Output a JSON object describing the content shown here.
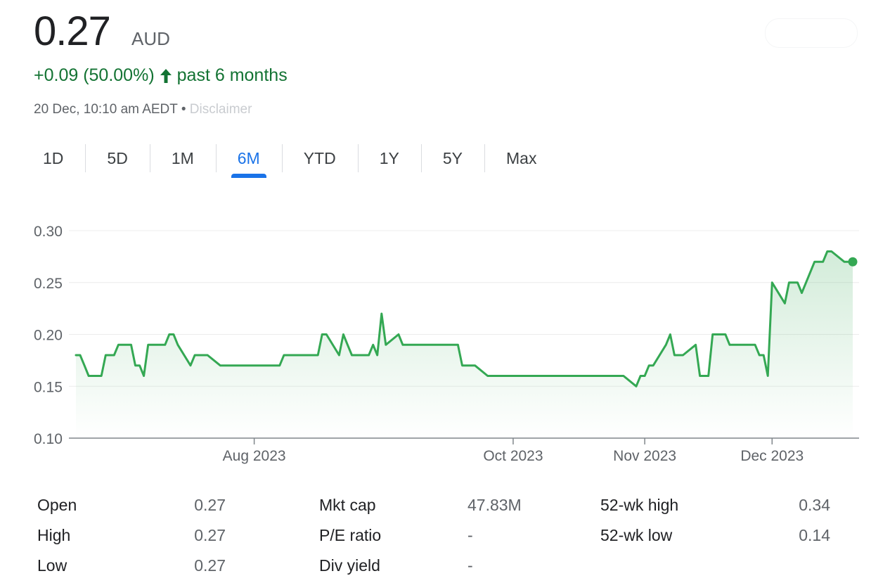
{
  "header": {
    "price": "0.27",
    "currency": "AUD",
    "change": "+0.09 (50.00%)",
    "period": "past 6 months",
    "timestamp": "20 Dec, 10:10 am AEDT •",
    "timestamp_blur": "Disclaimer"
  },
  "colors": {
    "up": "#137333",
    "line": "#34a853",
    "accent": "#1a73e8"
  },
  "tabs": [
    {
      "label": "1D",
      "active": false
    },
    {
      "label": "5D",
      "active": false
    },
    {
      "label": "1M",
      "active": false
    },
    {
      "label": "6M",
      "active": true
    },
    {
      "label": "YTD",
      "active": false
    },
    {
      "label": "1Y",
      "active": false
    },
    {
      "label": "5Y",
      "active": false
    },
    {
      "label": "Max",
      "active": false
    }
  ],
  "chart_data": {
    "type": "area",
    "x_start": "2023-06-20",
    "x_end": "2023-12-20",
    "ylim": [
      0.1,
      0.3
    ],
    "yticks": [
      "0.30",
      "0.25",
      "0.20",
      "0.15",
      "0.10"
    ],
    "xticks": [
      {
        "date": "2023-08-01",
        "label": "Aug 2023"
      },
      {
        "date": "2023-10-01",
        "label": "Oct 2023"
      },
      {
        "date": "2023-11-01",
        "label": "Nov 2023"
      },
      {
        "date": "2023-12-01",
        "label": "Dec 2023"
      }
    ],
    "grid": true,
    "points": [
      [
        "2023-06-20",
        0.18
      ],
      [
        "2023-06-21",
        0.18
      ],
      [
        "2023-06-22",
        0.17
      ],
      [
        "2023-06-23",
        0.16
      ],
      [
        "2023-06-26",
        0.16
      ],
      [
        "2023-06-27",
        0.18
      ],
      [
        "2023-06-28",
        0.18
      ],
      [
        "2023-06-29",
        0.18
      ],
      [
        "2023-06-30",
        0.19
      ],
      [
        "2023-07-03",
        0.19
      ],
      [
        "2023-07-04",
        0.17
      ],
      [
        "2023-07-05",
        0.17
      ],
      [
        "2023-07-06",
        0.16
      ],
      [
        "2023-07-07",
        0.19
      ],
      [
        "2023-07-10",
        0.19
      ],
      [
        "2023-07-11",
        0.19
      ],
      [
        "2023-07-12",
        0.2
      ],
      [
        "2023-07-13",
        0.2
      ],
      [
        "2023-07-14",
        0.19
      ],
      [
        "2023-07-17",
        0.17
      ],
      [
        "2023-07-18",
        0.18
      ],
      [
        "2023-07-19",
        0.18
      ],
      [
        "2023-07-20",
        0.18
      ],
      [
        "2023-07-21",
        0.18
      ],
      [
        "2023-07-24",
        0.17
      ],
      [
        "2023-07-25",
        0.17
      ],
      [
        "2023-07-26",
        0.17
      ],
      [
        "2023-07-27",
        0.17
      ],
      [
        "2023-07-28",
        0.17
      ],
      [
        "2023-07-31",
        0.17
      ],
      [
        "2023-08-01",
        0.17
      ],
      [
        "2023-08-02",
        0.17
      ],
      [
        "2023-08-03",
        0.17
      ],
      [
        "2023-08-04",
        0.17
      ],
      [
        "2023-08-07",
        0.17
      ],
      [
        "2023-08-08",
        0.18
      ],
      [
        "2023-08-09",
        0.18
      ],
      [
        "2023-08-10",
        0.18
      ],
      [
        "2023-08-11",
        0.18
      ],
      [
        "2023-08-14",
        0.18
      ],
      [
        "2023-08-15",
        0.18
      ],
      [
        "2023-08-16",
        0.18
      ],
      [
        "2023-08-17",
        0.2
      ],
      [
        "2023-08-18",
        0.2
      ],
      [
        "2023-08-21",
        0.18
      ],
      [
        "2023-08-22",
        0.2
      ],
      [
        "2023-08-23",
        0.19
      ],
      [
        "2023-08-24",
        0.18
      ],
      [
        "2023-08-25",
        0.18
      ],
      [
        "2023-08-28",
        0.18
      ],
      [
        "2023-08-29",
        0.19
      ],
      [
        "2023-08-30",
        0.18
      ],
      [
        "2023-08-31",
        0.22
      ],
      [
        "2023-09-01",
        0.19
      ],
      [
        "2023-09-04",
        0.2
      ],
      [
        "2023-09-05",
        0.19
      ],
      [
        "2023-09-06",
        0.19
      ],
      [
        "2023-09-07",
        0.19
      ],
      [
        "2023-09-08",
        0.19
      ],
      [
        "2023-09-11",
        0.19
      ],
      [
        "2023-09-12",
        0.19
      ],
      [
        "2023-09-13",
        0.19
      ],
      [
        "2023-09-14",
        0.19
      ],
      [
        "2023-09-15",
        0.19
      ],
      [
        "2023-09-18",
        0.19
      ],
      [
        "2023-09-19",
        0.17
      ],
      [
        "2023-09-20",
        0.17
      ],
      [
        "2023-09-21",
        0.17
      ],
      [
        "2023-09-22",
        0.17
      ],
      [
        "2023-09-25",
        0.16
      ],
      [
        "2023-09-26",
        0.16
      ],
      [
        "2023-09-27",
        0.16
      ],
      [
        "2023-09-28",
        0.16
      ],
      [
        "2023-09-29",
        0.16
      ],
      [
        "2023-10-02",
        0.16
      ],
      [
        "2023-10-03",
        0.16
      ],
      [
        "2023-10-04",
        0.16
      ],
      [
        "2023-10-05",
        0.16
      ],
      [
        "2023-10-06",
        0.16
      ],
      [
        "2023-10-09",
        0.16
      ],
      [
        "2023-10-10",
        0.16
      ],
      [
        "2023-10-11",
        0.16
      ],
      [
        "2023-10-12",
        0.16
      ],
      [
        "2023-10-13",
        0.16
      ],
      [
        "2023-10-16",
        0.16
      ],
      [
        "2023-10-17",
        0.16
      ],
      [
        "2023-10-18",
        0.16
      ],
      [
        "2023-10-19",
        0.16
      ],
      [
        "2023-10-20",
        0.16
      ],
      [
        "2023-10-23",
        0.16
      ],
      [
        "2023-10-24",
        0.16
      ],
      [
        "2023-10-25",
        0.16
      ],
      [
        "2023-10-26",
        0.16
      ],
      [
        "2023-10-27",
        0.16
      ],
      [
        "2023-10-30",
        0.15
      ],
      [
        "2023-10-31",
        0.16
      ],
      [
        "2023-11-01",
        0.16
      ],
      [
        "2023-11-02",
        0.17
      ],
      [
        "2023-11-03",
        0.17
      ],
      [
        "2023-11-06",
        0.19
      ],
      [
        "2023-11-07",
        0.2
      ],
      [
        "2023-11-08",
        0.18
      ],
      [
        "2023-11-09",
        0.18
      ],
      [
        "2023-11-10",
        0.18
      ],
      [
        "2023-11-13",
        0.19
      ],
      [
        "2023-11-14",
        0.16
      ],
      [
        "2023-11-15",
        0.16
      ],
      [
        "2023-11-16",
        0.16
      ],
      [
        "2023-11-17",
        0.2
      ],
      [
        "2023-11-20",
        0.2
      ],
      [
        "2023-11-21",
        0.19
      ],
      [
        "2023-11-22",
        0.19
      ],
      [
        "2023-11-23",
        0.19
      ],
      [
        "2023-11-24",
        0.19
      ],
      [
        "2023-11-27",
        0.19
      ],
      [
        "2023-11-28",
        0.18
      ],
      [
        "2023-11-29",
        0.18
      ],
      [
        "2023-11-30",
        0.16
      ],
      [
        "2023-12-01",
        0.25
      ],
      [
        "2023-12-04",
        0.23
      ],
      [
        "2023-12-05",
        0.25
      ],
      [
        "2023-12-06",
        0.25
      ],
      [
        "2023-12-07",
        0.25
      ],
      [
        "2023-12-08",
        0.24
      ],
      [
        "2023-12-11",
        0.27
      ],
      [
        "2023-12-12",
        0.27
      ],
      [
        "2023-12-13",
        0.27
      ],
      [
        "2023-12-14",
        0.28
      ],
      [
        "2023-12-15",
        0.28
      ],
      [
        "2023-12-18",
        0.27
      ],
      [
        "2023-12-19",
        0.27
      ],
      [
        "2023-12-20",
        0.27
      ]
    ]
  },
  "stats": [
    {
      "k1": "Open",
      "v1": "0.27",
      "k2": "Mkt cap",
      "v2": "47.83M",
      "k3": "52-wk high",
      "v3": "0.34"
    },
    {
      "k1": "High",
      "v1": "0.27",
      "k2": "P/E ratio",
      "v2": "-",
      "k3": "52-wk low",
      "v3": "0.14"
    },
    {
      "k1": "Low",
      "v1": "0.27",
      "k2": "Div yield",
      "v2": "-",
      "k3": "",
      "v3": ""
    }
  ]
}
